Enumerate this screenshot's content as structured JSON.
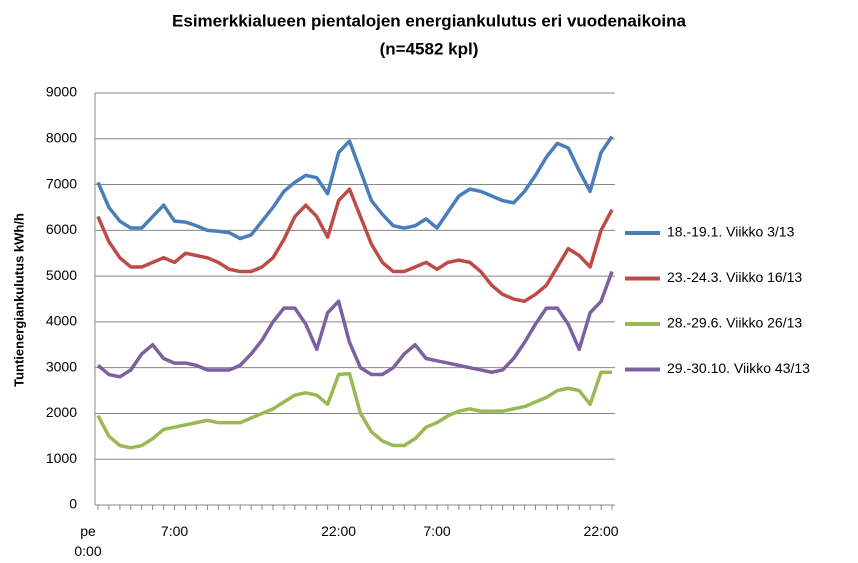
{
  "chart_data": {
    "type": "line",
    "title": "Esimerkkialueen pientalojen energiankulutus eri vuodenaikoina",
    "subtitle": "(n=4582 kpl)",
    "y_label": "Tuntienergiankulutus kWh/h",
    "categories": [
      "pe 0:00",
      null,
      null,
      null,
      null,
      null,
      null,
      "7:00",
      null,
      null,
      null,
      null,
      null,
      null,
      null,
      null,
      null,
      null,
      null,
      null,
      null,
      null,
      "22:00",
      null,
      null,
      null,
      null,
      null,
      null,
      null,
      null,
      "7:00",
      null,
      null,
      null,
      null,
      null,
      null,
      null,
      null,
      null,
      null,
      null,
      null,
      null,
      null,
      "22:00",
      null
    ],
    "series": [
      {
        "name": "18.-19.1. Viikko 3/13",
        "color": "#4a7ebb",
        "values": [
          7050,
          6500,
          6200,
          6050,
          6050,
          6300,
          6550,
          6200,
          6180,
          6100,
          6000,
          5980,
          5950,
          5820,
          5900,
          6200,
          6500,
          6850,
          7050,
          7200,
          7150,
          6800,
          7700,
          7950,
          7300,
          6650,
          6350,
          6100,
          6050,
          6100,
          6250,
          6050,
          6400,
          6750,
          6900,
          6850,
          6750,
          6650,
          6600,
          6850,
          7200,
          7600,
          7900,
          7800,
          7300,
          6850,
          7700,
          8050
        ]
      },
      {
        "name": "23.-24.3. Viikko 16/13",
        "color": "#be4b48",
        "values": [
          6300,
          5750,
          5400,
          5200,
          5200,
          5300,
          5400,
          5300,
          5500,
          5450,
          5400,
          5300,
          5150,
          5100,
          5100,
          5200,
          5400,
          5800,
          6300,
          6550,
          6300,
          5850,
          6650,
          6900,
          6300,
          5700,
          5300,
          5100,
          5100,
          5200,
          5300,
          5150,
          5300,
          5350,
          5300,
          5100,
          4800,
          4600,
          4500,
          4450,
          4600,
          4800,
          5200,
          5600,
          5450,
          5200,
          6000,
          6450
        ]
      },
      {
        "name": "28.-29.6. Viikko 26/13",
        "color": "#98b954",
        "values": [
          1950,
          1500,
          1300,
          1250,
          1300,
          1450,
          1650,
          1700,
          1750,
          1800,
          1850,
          1800,
          1800,
          1800,
          1900,
          2000,
          2100,
          2250,
          2400,
          2450,
          2400,
          2200,
          2850,
          2870,
          2000,
          1600,
          1400,
          1300,
          1300,
          1450,
          1700,
          1800,
          1950,
          2050,
          2100,
          2050,
          2050,
          2050,
          2100,
          2150,
          2250,
          2350,
          2500,
          2550,
          2500,
          2200,
          2900,
          2900
        ]
      },
      {
        "name": "29.-30.10. Viikko 43/13",
        "color": "#7d60a0",
        "values": [
          3050,
          2850,
          2800,
          2950,
          3300,
          3500,
          3200,
          3100,
          3100,
          3050,
          2950,
          2950,
          2950,
          3050,
          3300,
          3600,
          4000,
          4300,
          4300,
          3950,
          3400,
          4200,
          4450,
          3550,
          3000,
          2850,
          2850,
          3000,
          3300,
          3500,
          3200,
          3150,
          3100,
          3050,
          3000,
          2950,
          2900,
          2950,
          3200,
          3550,
          3950,
          4300,
          4300,
          3950,
          3400,
          4200,
          4450,
          5100
        ]
      }
    ],
    "ylim": [
      0,
      9000
    ],
    "yticks": [
      0,
      1000,
      2000,
      3000,
      4000,
      5000,
      6000,
      7000,
      8000,
      9000
    ],
    "grid": true,
    "legend": "right"
  }
}
